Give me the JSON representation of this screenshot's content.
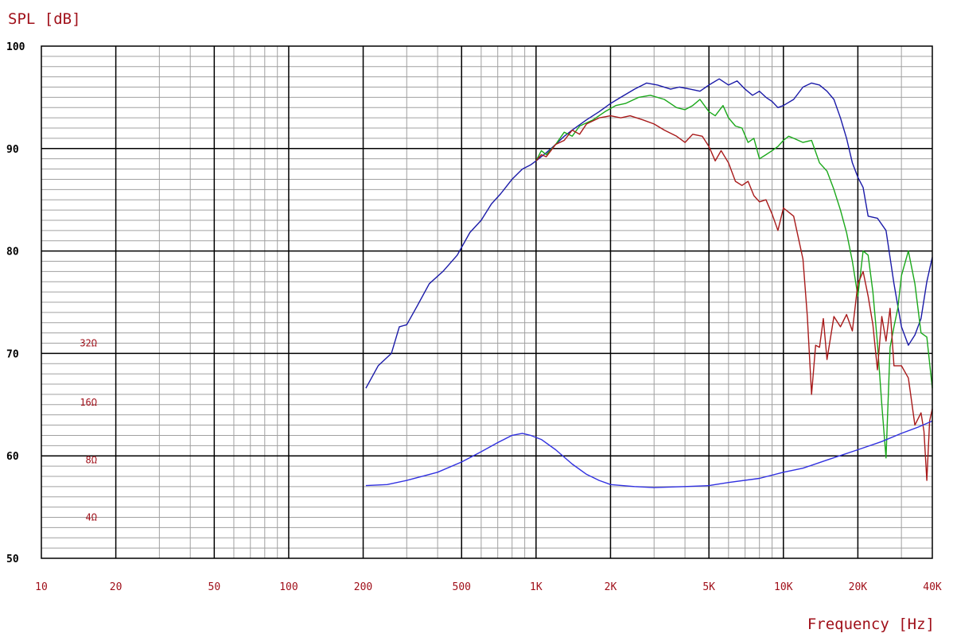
{
  "chart_data": {
    "type": "line",
    "title": "",
    "ylabel": "SPL [dB]",
    "xlabel": "Frequency [Hz]",
    "x_scale": "log",
    "xlim": [
      10,
      40000
    ],
    "ylim": [
      50,
      100
    ],
    "x_ticks": [
      {
        "value": 10,
        "label": "10"
      },
      {
        "value": 20,
        "label": "20"
      },
      {
        "value": 50,
        "label": "50"
      },
      {
        "value": 100,
        "label": "100"
      },
      {
        "value": 200,
        "label": "200"
      },
      {
        "value": 500,
        "label": "500"
      },
      {
        "value": 1000,
        "label": "1K"
      },
      {
        "value": 2000,
        "label": "2K"
      },
      {
        "value": 5000,
        "label": "5K"
      },
      {
        "value": 10000,
        "label": "10K"
      },
      {
        "value": 20000,
        "label": "20K"
      },
      {
        "value": 40000,
        "label": "40K"
      }
    ],
    "y_ticks": [
      {
        "value": 50,
        "label": "50"
      },
      {
        "value": 60,
        "label": "60"
      },
      {
        "value": 70,
        "label": "70"
      },
      {
        "value": 80,
        "label": "80"
      },
      {
        "value": 90,
        "label": "90"
      },
      {
        "value": 100,
        "label": "100"
      }
    ],
    "impedance_labels": [
      {
        "value": 71.0,
        "label": "32Ω"
      },
      {
        "value": 65.2,
        "label": "16Ω"
      },
      {
        "value": 59.6,
        "label": "8Ω"
      },
      {
        "value": 54.0,
        "label": "4Ω"
      }
    ],
    "grid": true,
    "series": [
      {
        "color": "#1a1aa8",
        "points": [
          [
            205,
            66.6
          ],
          [
            230,
            68.8
          ],
          [
            260,
            70.0
          ],
          [
            280,
            72.6
          ],
          [
            300,
            72.8
          ],
          [
            330,
            74.6
          ],
          [
            370,
            76.8
          ],
          [
            420,
            78.0
          ],
          [
            480,
            79.6
          ],
          [
            540,
            81.8
          ],
          [
            600,
            83.0
          ],
          [
            660,
            84.6
          ],
          [
            720,
            85.6
          ],
          [
            800,
            87.0
          ],
          [
            880,
            88.0
          ],
          [
            950,
            88.4
          ],
          [
            1000,
            88.8
          ],
          [
            1100,
            89.6
          ],
          [
            1200,
            90.4
          ],
          [
            1300,
            91.2
          ],
          [
            1400,
            91.8
          ],
          [
            1600,
            92.8
          ],
          [
            1800,
            93.6
          ],
          [
            2000,
            94.4
          ],
          [
            2200,
            95.0
          ],
          [
            2500,
            95.8
          ],
          [
            2800,
            96.4
          ],
          [
            3100,
            96.2
          ],
          [
            3500,
            95.8
          ],
          [
            3800,
            96.0
          ],
          [
            4200,
            95.8
          ],
          [
            4600,
            95.6
          ],
          [
            5000,
            96.2
          ],
          [
            5500,
            96.8
          ],
          [
            6000,
            96.2
          ],
          [
            6500,
            96.6
          ],
          [
            7000,
            95.8
          ],
          [
            7500,
            95.2
          ],
          [
            8000,
            95.6
          ],
          [
            8500,
            95.0
          ],
          [
            9000,
            94.6
          ],
          [
            9500,
            94.0
          ],
          [
            10000,
            94.2
          ],
          [
            11000,
            94.8
          ],
          [
            12000,
            96.0
          ],
          [
            13000,
            96.4
          ],
          [
            14000,
            96.2
          ],
          [
            15000,
            95.6
          ],
          [
            16000,
            94.8
          ],
          [
            17000,
            93.0
          ],
          [
            18000,
            91.0
          ],
          [
            19000,
            88.6
          ],
          [
            20000,
            87.2
          ],
          [
            21000,
            86.2
          ],
          [
            22000,
            83.4
          ],
          [
            24000,
            83.2
          ],
          [
            26000,
            82.0
          ],
          [
            28000,
            76.8
          ],
          [
            30000,
            72.6
          ],
          [
            32000,
            70.8
          ],
          [
            34000,
            71.8
          ],
          [
            36000,
            73.4
          ],
          [
            38000,
            77.0
          ],
          [
            40000,
            79.4
          ]
        ]
      },
      {
        "color": "#1aa81a",
        "points": [
          [
            1000,
            88.8
          ],
          [
            1050,
            89.8
          ],
          [
            1100,
            89.4
          ],
          [
            1200,
            90.4
          ],
          [
            1300,
            91.6
          ],
          [
            1400,
            91.2
          ],
          [
            1500,
            92.2
          ],
          [
            1700,
            92.8
          ],
          [
            1900,
            93.6
          ],
          [
            2100,
            94.2
          ],
          [
            2300,
            94.4
          ],
          [
            2600,
            95.0
          ],
          [
            2900,
            95.2
          ],
          [
            3300,
            94.8
          ],
          [
            3700,
            94.0
          ],
          [
            4000,
            93.8
          ],
          [
            4300,
            94.2
          ],
          [
            4600,
            94.8
          ],
          [
            5000,
            93.6
          ],
          [
            5300,
            93.2
          ],
          [
            5700,
            94.2
          ],
          [
            6000,
            93.0
          ],
          [
            6400,
            92.2
          ],
          [
            6800,
            92.0
          ],
          [
            7200,
            90.6
          ],
          [
            7600,
            91.0
          ],
          [
            8000,
            89.0
          ],
          [
            8500,
            89.4
          ],
          [
            9000,
            89.8
          ],
          [
            9500,
            90.2
          ],
          [
            10000,
            90.8
          ],
          [
            10500,
            91.2
          ],
          [
            11000,
            91.0
          ],
          [
            12000,
            90.6
          ],
          [
            13000,
            90.8
          ],
          [
            14000,
            88.6
          ],
          [
            15000,
            87.8
          ],
          [
            16000,
            86.0
          ],
          [
            17000,
            84.0
          ],
          [
            18000,
            81.8
          ],
          [
            19000,
            79.0
          ],
          [
            20000,
            75.6
          ],
          [
            21000,
            80.0
          ],
          [
            22000,
            79.6
          ],
          [
            23000,
            76.0
          ],
          [
            24000,
            71.0
          ],
          [
            25000,
            65.0
          ],
          [
            26000,
            59.8
          ],
          [
            27000,
            70.6
          ],
          [
            28000,
            72.6
          ],
          [
            29000,
            74.4
          ],
          [
            30000,
            77.6
          ],
          [
            32000,
            80.0
          ],
          [
            34000,
            76.8
          ],
          [
            36000,
            72.0
          ],
          [
            38000,
            71.6
          ],
          [
            40000,
            66.6
          ]
        ]
      },
      {
        "color": "#a81a1a",
        "points": [
          [
            1000,
            88.8
          ],
          [
            1050,
            89.4
          ],
          [
            1100,
            89.2
          ],
          [
            1200,
            90.4
          ],
          [
            1300,
            90.8
          ],
          [
            1400,
            91.8
          ],
          [
            1500,
            91.4
          ],
          [
            1600,
            92.4
          ],
          [
            1800,
            93.0
          ],
          [
            2000,
            93.2
          ],
          [
            2200,
            93.0
          ],
          [
            2400,
            93.2
          ],
          [
            2700,
            92.8
          ],
          [
            3000,
            92.4
          ],
          [
            3300,
            91.8
          ],
          [
            3700,
            91.2
          ],
          [
            4000,
            90.6
          ],
          [
            4300,
            91.4
          ],
          [
            4700,
            91.2
          ],
          [
            5000,
            90.2
          ],
          [
            5300,
            88.8
          ],
          [
            5600,
            89.8
          ],
          [
            6000,
            88.6
          ],
          [
            6400,
            86.8
          ],
          [
            6800,
            86.4
          ],
          [
            7200,
            86.8
          ],
          [
            7600,
            85.4
          ],
          [
            8000,
            84.8
          ],
          [
            8500,
            85.0
          ],
          [
            9000,
            83.6
          ],
          [
            9500,
            82.0
          ],
          [
            10000,
            84.2
          ],
          [
            11000,
            83.4
          ],
          [
            12000,
            79.2
          ],
          [
            12500,
            73.6
          ],
          [
            13000,
            66.0
          ],
          [
            13500,
            70.8
          ],
          [
            14000,
            70.6
          ],
          [
            14500,
            73.4
          ],
          [
            15000,
            69.4
          ],
          [
            16000,
            73.6
          ],
          [
            17000,
            72.6
          ],
          [
            18000,
            73.8
          ],
          [
            19000,
            72.2
          ],
          [
            20000,
            76.8
          ],
          [
            21000,
            78.0
          ],
          [
            22000,
            75.6
          ],
          [
            23000,
            72.8
          ],
          [
            24000,
            68.4
          ],
          [
            25000,
            73.6
          ],
          [
            26000,
            71.2
          ],
          [
            27000,
            74.4
          ],
          [
            28000,
            68.8
          ],
          [
            30000,
            68.8
          ],
          [
            32000,
            67.6
          ],
          [
            34000,
            63.0
          ],
          [
            36000,
            64.2
          ],
          [
            37000,
            62.4
          ],
          [
            38000,
            57.6
          ],
          [
            39000,
            63.4
          ],
          [
            40000,
            64.6
          ]
        ]
      },
      {
        "color": "#3030e0",
        "points": [
          [
            205,
            57.1
          ],
          [
            250,
            57.2
          ],
          [
            300,
            57.6
          ],
          [
            400,
            58.4
          ],
          [
            500,
            59.4
          ],
          [
            600,
            60.4
          ],
          [
            700,
            61.3
          ],
          [
            800,
            62.0
          ],
          [
            880,
            62.2
          ],
          [
            950,
            62.0
          ],
          [
            1050,
            61.6
          ],
          [
            1200,
            60.6
          ],
          [
            1400,
            59.2
          ],
          [
            1600,
            58.2
          ],
          [
            1800,
            57.6
          ],
          [
            2000,
            57.2
          ],
          [
            2500,
            57.0
          ],
          [
            3000,
            56.9
          ],
          [
            4000,
            57.0
          ],
          [
            5000,
            57.1
          ],
          [
            6000,
            57.4
          ],
          [
            8000,
            57.8
          ],
          [
            10000,
            58.4
          ],
          [
            12000,
            58.8
          ],
          [
            15000,
            59.6
          ],
          [
            20000,
            60.6
          ],
          [
            25000,
            61.4
          ],
          [
            30000,
            62.2
          ],
          [
            35000,
            62.8
          ],
          [
            40000,
            63.4
          ]
        ]
      }
    ]
  }
}
